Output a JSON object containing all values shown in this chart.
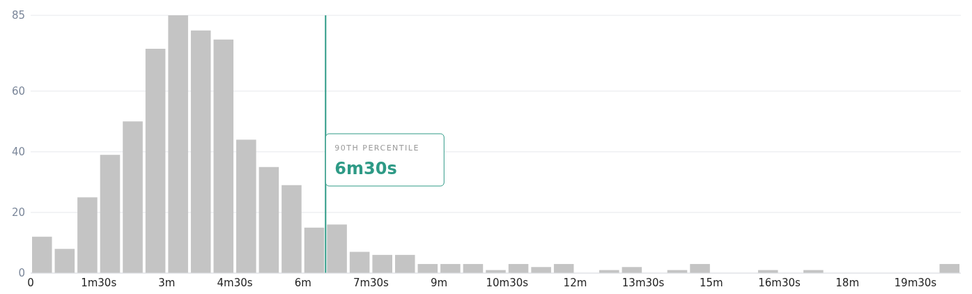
{
  "chart_data": {
    "type": "histogram",
    "bins": [
      0,
      0.5,
      1,
      1.5,
      2,
      2.5,
      3,
      3.5,
      4,
      4.5,
      5,
      5.5,
      6,
      6.5,
      7,
      7.5,
      8,
      8.5,
      9,
      9.5,
      10,
      10.5,
      11,
      11.5,
      12,
      12.5,
      13,
      13.5,
      14,
      14.5,
      15,
      15.5,
      16,
      16.5,
      17,
      17.5,
      18,
      18.5,
      19,
      19.5,
      20,
      20.5
    ],
    "values": [
      12,
      8,
      25,
      39,
      50,
      74,
      85,
      80,
      77,
      44,
      35,
      29,
      15,
      16,
      7,
      6,
      6,
      3,
      3,
      3,
      1,
      3,
      2,
      3,
      0,
      1,
      2,
      0,
      1,
      3,
      0,
      0,
      1,
      0,
      1,
      0,
      0,
      0,
      0,
      0,
      3
    ],
    "color": "#c4c4c4",
    "xlim": [
      0,
      20.5
    ],
    "xticks": [
      0,
      {
        "value": 1.5,
        "label": "1m30s"
      },
      {
        "value": 3,
        "label": "3m"
      },
      {
        "value": 4.5,
        "label": "4m30s"
      },
      {
        "value": 6,
        "label": "6m"
      },
      {
        "value": 7.5,
        "label": "7m30s"
      },
      {
        "value": 9,
        "label": "9m"
      },
      {
        "value": 10.5,
        "label": "10m30s"
      },
      {
        "value": 12,
        "label": "12m"
      },
      {
        "value": 13.5,
        "label": "13m30s"
      },
      {
        "value": 15,
        "label": "15m"
      },
      {
        "value": 16.5,
        "label": "16m30s"
      },
      {
        "value": 18,
        "label": "18m"
      },
      {
        "value": 19.5,
        "label": "19m30s"
      }
    ],
    "ylim": [
      0,
      85
    ],
    "yticks": [
      0,
      20,
      40,
      60,
      85
    ],
    "grid": "y",
    "ref_lines": [
      {
        "axis": "x",
        "value": 6.5,
        "label": "6m30s",
        "color": "#2e9a86"
      }
    ],
    "annotations": [
      "90TH PERCENTILE"
    ]
  }
}
